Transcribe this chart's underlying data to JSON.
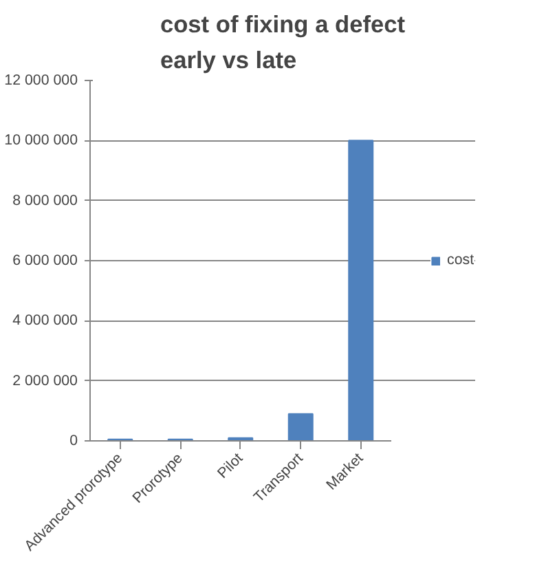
{
  "chart_data": {
    "type": "bar",
    "title": "cost of fixing a defect\nearly vs late",
    "categories": [
      "Advanced prorotype",
      "Prorotype",
      "Pilot",
      "Transport",
      "Market"
    ],
    "series": [
      {
        "name": "cost",
        "color": "#4f81bd",
        "values": [
          50000,
          50000,
          100000,
          900000,
          10000000
        ]
      }
    ],
    "ylim": [
      0,
      12000000
    ],
    "yticks": [
      {
        "value": 0,
        "label": "0"
      },
      {
        "value": 2000000,
        "label": "2 000 000"
      },
      {
        "value": 4000000,
        "label": "4 000 000"
      },
      {
        "value": 6000000,
        "label": "6 000 000"
      },
      {
        "value": 8000000,
        "label": "8 000 000"
      },
      {
        "value": 10000000,
        "label": "10 000 000"
      },
      {
        "value": 12000000,
        "label": "12 000 000"
      }
    ],
    "grid": "y",
    "legend": "right"
  }
}
